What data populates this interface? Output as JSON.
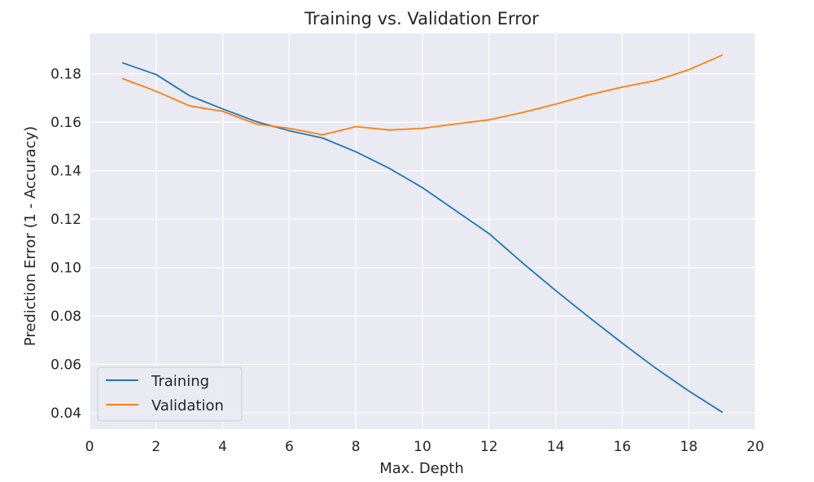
{
  "chart_data": {
    "type": "line",
    "title": "Training vs. Validation Error",
    "xlabel": "Max. Depth",
    "ylabel": "Prediction Error (1 - Accuracy)",
    "xlim": [
      0,
      20
    ],
    "ylim": [
      0.0333,
      0.1967
    ],
    "xticks": [
      0,
      2,
      4,
      6,
      8,
      10,
      12,
      14,
      16,
      18,
      20
    ],
    "yticks": [
      0.04,
      0.06,
      0.08,
      0.1,
      0.12,
      0.14,
      0.16,
      0.18
    ],
    "ytick_labels": [
      "0.04",
      "0.06",
      "0.08",
      "0.10",
      "0.12",
      "0.14",
      "0.16",
      "0.18"
    ],
    "grid": true,
    "legend_position": "lower-left",
    "x": [
      1,
      2,
      3,
      4,
      5,
      6,
      7,
      8,
      9,
      10,
      11,
      12,
      13,
      14,
      15,
      16,
      17,
      18,
      19
    ],
    "series": [
      {
        "name": "Training",
        "color": "#1f77b4",
        "values": [
          0.1845,
          0.1797,
          0.171,
          0.1655,
          0.1603,
          0.1565,
          0.1535,
          0.1478,
          0.141,
          0.133,
          0.1235,
          0.114,
          0.102,
          0.0905,
          0.0795,
          0.0688,
          0.0585,
          0.049,
          0.0403
        ]
      },
      {
        "name": "Validation",
        "color": "#ff7f0e",
        "values": [
          0.178,
          0.1728,
          0.1668,
          0.1645,
          0.1593,
          0.1575,
          0.1548,
          0.1582,
          0.1568,
          0.1575,
          0.1593,
          0.161,
          0.164,
          0.1675,
          0.1713,
          0.1745,
          0.1772,
          0.1817,
          0.1877
        ]
      }
    ]
  },
  "colors": {
    "plot_background": "#eaeaf2",
    "grid": "#ffffff"
  }
}
